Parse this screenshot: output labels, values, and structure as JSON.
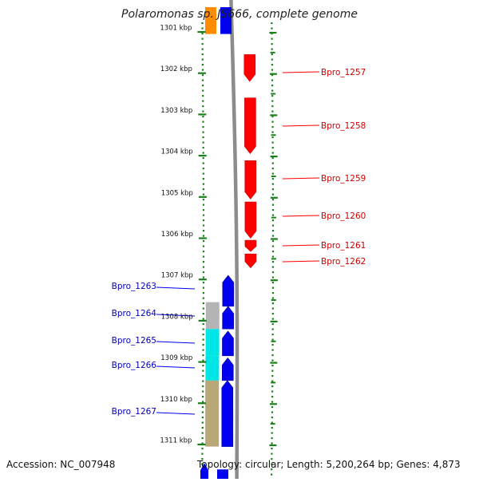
{
  "title": "Polaromonas sp. JS666, complete genome",
  "footer": {
    "accession": "Accession: NC_007948",
    "topology": "Topology: circular; Length: 5,200,264 bp; Genes: 4,873"
  },
  "colors": {
    "forward_feature": "#ff0000",
    "reverse_feature": "#0000ee",
    "backbone": "#8c8c8c",
    "ticks": "#1a7f1a",
    "orange_feature": "#ff8c00",
    "gray_feature": "#b4b4b4",
    "cyan_feature": "#00e5e5",
    "tan_feature": "#b8a878"
  },
  "chart_data": {
    "type": "genome-map",
    "ruler_unit": "kbp",
    "ruler_ticks": [
      {
        "kbp": 1301,
        "label": "1301 kbp"
      },
      {
        "kbp": 1302,
        "label": "1302 kbp"
      },
      {
        "kbp": 1303,
        "label": "1303 kbp"
      },
      {
        "kbp": 1304,
        "label": "1304 kbp"
      },
      {
        "kbp": 1305,
        "label": "1305 kbp"
      },
      {
        "kbp": 1306,
        "label": "1306 kbp"
      },
      {
        "kbp": 1307,
        "label": "1307 kbp"
      },
      {
        "kbp": 1308,
        "label": "1308 kbp"
      },
      {
        "kbp": 1309,
        "label": "1309 kbp"
      },
      {
        "kbp": 1310,
        "label": "1310 kbp"
      },
      {
        "kbp": 1311,
        "label": "1311 kbp"
      }
    ],
    "forward_genes": [
      {
        "label": "Bpro_1257",
        "start_kbp": 1301.55,
        "end_kbp": 1302.2
      },
      {
        "label": "Bpro_1258",
        "start_kbp": 1302.6,
        "end_kbp": 1303.95
      },
      {
        "label": "Bpro_1259",
        "start_kbp": 1304.12,
        "end_kbp": 1305.05
      },
      {
        "label": "Bpro_1260",
        "start_kbp": 1305.12,
        "end_kbp": 1306.0
      },
      {
        "label": "Bpro_1261",
        "start_kbp": 1306.05,
        "end_kbp": 1306.32
      },
      {
        "label": "Bpro_1262",
        "start_kbp": 1306.38,
        "end_kbp": 1306.72
      }
    ],
    "reverse_genes": [
      {
        "label": "Bpro_1263",
        "start_kbp": 1306.9,
        "end_kbp": 1307.65
      },
      {
        "label": "Bpro_1264",
        "start_kbp": 1307.65,
        "end_kbp": 1308.2
      },
      {
        "label": "Bpro_1265",
        "start_kbp": 1308.25,
        "end_kbp": 1308.85
      },
      {
        "label": "Bpro_1266",
        "start_kbp": 1308.9,
        "end_kbp": 1309.45
      },
      {
        "label": "Bpro_1267",
        "start_kbp": 1309.45,
        "end_kbp": 1311.05
      }
    ],
    "top_partial_genes": [
      {
        "strand": "reverse",
        "color": "orange_feature",
        "start_kbp": 1300.4,
        "end_kbp": 1301.05
      },
      {
        "strand": "reverse",
        "color": "reverse_feature",
        "start_kbp": 1300.4,
        "end_kbp": 1301.05
      }
    ],
    "bottom_partial_genes": [
      {
        "strand": "reverse",
        "color": "reverse_feature",
        "start_kbp": 1311.45,
        "end_kbp": 1311.9
      }
    ],
    "cog_blocks": [
      {
        "color": "gray_feature",
        "start_kbp": 1307.55,
        "end_kbp": 1308.2
      },
      {
        "color": "cyan_feature",
        "start_kbp": 1308.2,
        "end_kbp": 1308.85
      },
      {
        "color": "cyan_feature",
        "start_kbp": 1308.85,
        "end_kbp": 1309.45
      },
      {
        "color": "tan_feature",
        "start_kbp": 1309.45,
        "end_kbp": 1311.05
      }
    ]
  }
}
